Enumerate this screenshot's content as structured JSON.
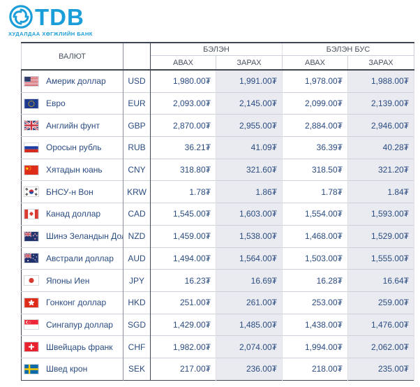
{
  "brand": {
    "name": "TDB",
    "tagline": "ХУДАЛДАА ХӨГЖЛИЙН БАНК"
  },
  "colors": {
    "brand_blue": "#1a9dd9",
    "text_navy": "#2b4c80",
    "header_text": "#4a5161",
    "shaded_cell": "#e9ebf1",
    "dark_border": "#3f4551"
  },
  "table": {
    "headers": {
      "currency": "ВАЛЮТ",
      "cash": "БЭЛЭН",
      "noncash": "БЭЛЭН БУС",
      "buy": "АВАХ",
      "sell": "ЗАРАХ"
    },
    "rows": [
      {
        "flag": "us",
        "name": "Америк доллар",
        "code": "USD",
        "cash_buy": "1,980.00₮",
        "cash_sell": "1,991.00₮",
        "noncash_buy": "1,978.00₮",
        "noncash_sell": "1,988.00₮"
      },
      {
        "flag": "eu",
        "name": "Евро",
        "code": "EUR",
        "cash_buy": "2,093.00₮",
        "cash_sell": "2,145.00₮",
        "noncash_buy": "2,099.00₮",
        "noncash_sell": "2,139.00₮"
      },
      {
        "flag": "gb",
        "name": "Английн фунт",
        "code": "GBP",
        "cash_buy": "2,870.00₮",
        "cash_sell": "2,955.00₮",
        "noncash_buy": "2,884.00₮",
        "noncash_sell": "2,946.00₮"
      },
      {
        "flag": "ru",
        "name": "Оросын рубль",
        "code": "RUB",
        "cash_buy": "36.21₮",
        "cash_sell": "41.09₮",
        "noncash_buy": "36.39₮",
        "noncash_sell": "40.28₮"
      },
      {
        "flag": "cn",
        "name": "Хятадын юань",
        "code": "CNY",
        "cash_buy": "318.80₮",
        "cash_sell": "321.60₮",
        "noncash_buy": "318.50₮",
        "noncash_sell": "321.20₮"
      },
      {
        "flag": "kr",
        "name": "БНСУ-н Вон",
        "code": "KRW",
        "cash_buy": "1.78₮",
        "cash_sell": "1.86₮",
        "noncash_buy": "1.78₮",
        "noncash_sell": "1.84₮"
      },
      {
        "flag": "ca",
        "name": "Канад доллар",
        "code": "CAD",
        "cash_buy": "1,545.00₮",
        "cash_sell": "1,603.00₮",
        "noncash_buy": "1,554.00₮",
        "noncash_sell": "1,593.00₮"
      },
      {
        "flag": "nz",
        "name": "Шинэ Зеландын Доллар",
        "code": "NZD",
        "cash_buy": "1,459.00₮",
        "cash_sell": "1,538.00₮",
        "noncash_buy": "1,468.00₮",
        "noncash_sell": "1,529.00₮"
      },
      {
        "flag": "au",
        "name": "Австрали доллар",
        "code": "AUD",
        "cash_buy": "1,494.00₮",
        "cash_sell": "1,564.00₮",
        "noncash_buy": "1,503.00₮",
        "noncash_sell": "1,555.00₮"
      },
      {
        "flag": "jp",
        "name": "Японы Иен",
        "code": "JPY",
        "cash_buy": "16.23₮",
        "cash_sell": "16.69₮",
        "noncash_buy": "16.28₮",
        "noncash_sell": "16.64₮"
      },
      {
        "flag": "hk",
        "name": "Гонконг доллар",
        "code": "HKD",
        "cash_buy": "251.00₮",
        "cash_sell": "261.00₮",
        "noncash_buy": "253.00₮",
        "noncash_sell": "259.00₮"
      },
      {
        "flag": "sg",
        "name": "Сингапур доллар",
        "code": "SGD",
        "cash_buy": "1,429.00₮",
        "cash_sell": "1,485.00₮",
        "noncash_buy": "1,438.00₮",
        "noncash_sell": "1,476.00₮"
      },
      {
        "flag": "ch",
        "name": "Швейцарь франк",
        "code": "CHF",
        "cash_buy": "1,982.00₮",
        "cash_sell": "2,074.00₮",
        "noncash_buy": "1,994.00₮",
        "noncash_sell": "2,062.00₮"
      },
      {
        "flag": "se",
        "name": "Швед крон",
        "code": "SEK",
        "cash_buy": "217.00₮",
        "cash_sell": "236.00₮",
        "noncash_buy": "218.00₮",
        "noncash_sell": "235.00₮"
      }
    ]
  }
}
